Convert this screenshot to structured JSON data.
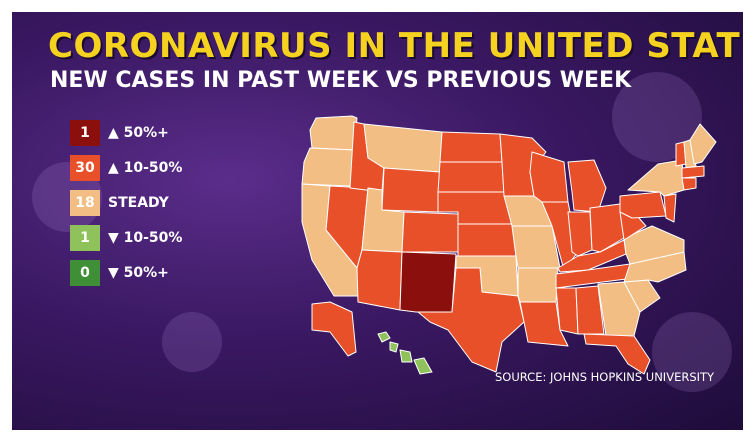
{
  "header": {
    "title": "CORONAVIRUS IN THE UNITED STATES",
    "subtitle": "NEW CASES IN PAST WEEK VS PREVIOUS WEEK"
  },
  "legend": [
    {
      "count": "1",
      "label": "▲ 50%+",
      "color": "#8b0f0c"
    },
    {
      "count": "30",
      "label": "▲ 10-50%",
      "color": "#e8502a"
    },
    {
      "count": "18",
      "label": "STEADY",
      "color": "#f2be84"
    },
    {
      "count": "1",
      "label": "▼ 10-50%",
      "color": "#8fc25a"
    },
    {
      "count": "0",
      "label": "▼ 50%+",
      "color": "#3e8f36"
    }
  ],
  "source": "SOURCE: JOHNS HOPKINS UNIVERSITY",
  "colors": {
    "up_50_plus": "#8b0f0c",
    "up_10_50": "#e8502a",
    "steady": "#f2be84",
    "down_10_50": "#8fc25a",
    "title": "#f4d21f"
  },
  "states": {
    "WA": "steady",
    "OR": "steady",
    "CA": "steady",
    "NV": "up_10_50",
    "ID": "up_10_50",
    "MT": "steady",
    "WY": "up_10_50",
    "UT": "steady",
    "AZ": "up_10_50",
    "CO": "up_10_50",
    "NM": "up_50_plus",
    "ND": "up_10_50",
    "SD": "up_10_50",
    "NE": "up_10_50",
    "KS": "up_10_50",
    "OK": "steady",
    "TX": "up_10_50",
    "MN": "up_10_50",
    "IA": "steady",
    "MO": "steady",
    "AR": "steady",
    "LA": "up_10_50",
    "WI": "up_10_50",
    "IL": "up_10_50",
    "MI": "up_10_50",
    "IN": "up_10_50",
    "OH": "up_10_50",
    "KY": "up_10_50",
    "TN": "up_10_50",
    "MS": "up_10_50",
    "AL": "up_10_50",
    "GA": "steady",
    "FL": "up_10_50",
    "SC": "steady",
    "NC": "steady",
    "VA": "steady",
    "WV": "up_10_50",
    "PA": "up_10_50",
    "NY": "steady",
    "VT": "up_10_50",
    "NH": "steady",
    "ME": "steady",
    "MA": "up_10_50",
    "CT": "up_10_50",
    "NJ": "up_10_50",
    "AK": "up_10_50",
    "HI": "down_10_50"
  }
}
